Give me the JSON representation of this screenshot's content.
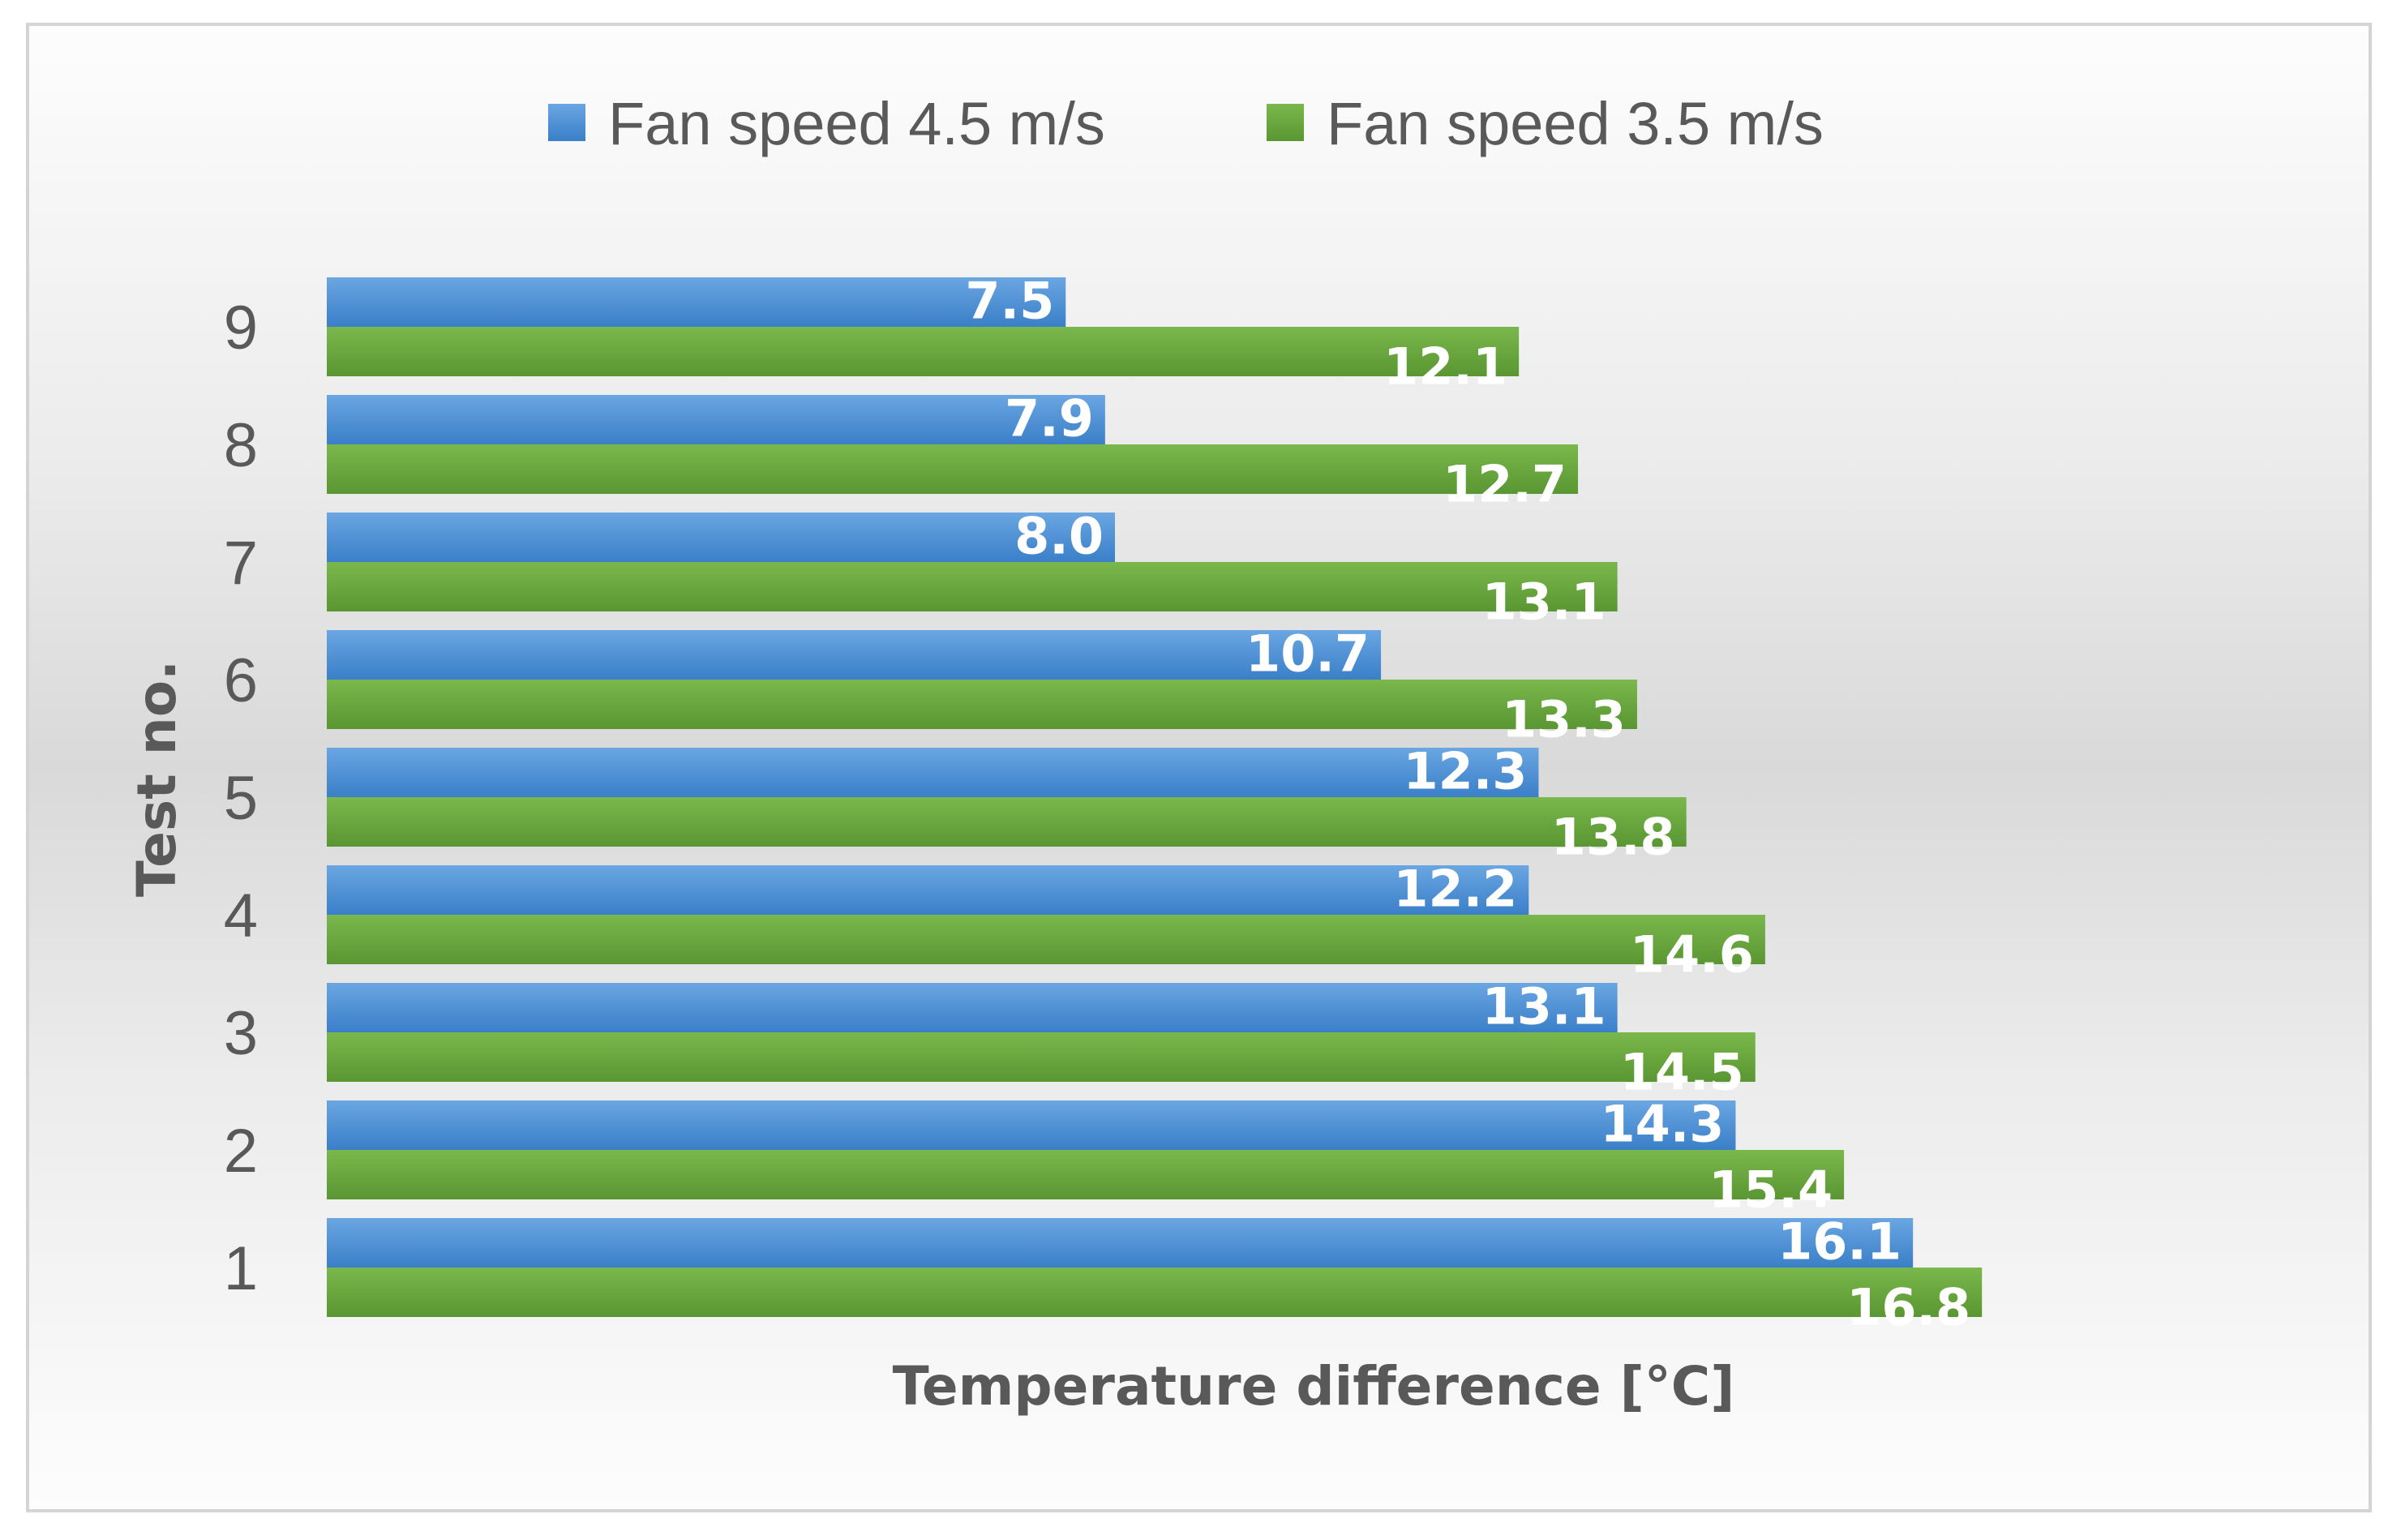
{
  "chart_data": {
    "type": "bar",
    "orientation": "horizontal",
    "categories": [
      "1",
      "2",
      "3",
      "4",
      "5",
      "6",
      "7",
      "8",
      "9"
    ],
    "series": [
      {
        "name": "Fan speed 4.5 m/s",
        "color": "#4a8fd4",
        "values": [
          16.1,
          14.3,
          13.1,
          12.2,
          12.3,
          10.7,
          8.0,
          7.9,
          7.5
        ]
      },
      {
        "name": "Fan speed 3.5 m/s",
        "color": "#6aa83e",
        "values": [
          16.8,
          15.4,
          14.5,
          14.6,
          13.8,
          13.3,
          13.1,
          12.7,
          12.1
        ]
      }
    ],
    "xlabel": "Temperature difference [°C]",
    "ylabel": "Test no.",
    "xlim": [
      0,
      18
    ],
    "grid": false,
    "legend_position": "top",
    "data_labels": true,
    "label_decimals": 1
  }
}
